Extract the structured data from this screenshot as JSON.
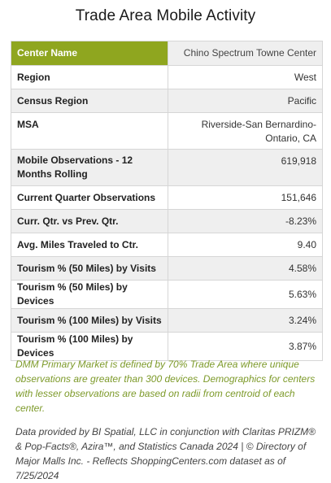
{
  "title": "Trade Area Mobile Activity",
  "accent_color": "#8fa61f",
  "note_color": "#7d9a2a",
  "rows": [
    {
      "label": "Center Name",
      "value": "Chino Spectrum Towne Center"
    },
    {
      "label": "Region",
      "value": "West"
    },
    {
      "label": "Census Region",
      "value": "Pacific"
    },
    {
      "label": "MSA",
      "value": "Riverside-San Bernardino-\nOntario, CA"
    },
    {
      "label": "Mobile Observations - 12 Months Rolling",
      "value": "619,918"
    },
    {
      "label": "Current Quarter Observations",
      "value": "151,646"
    },
    {
      "label": "Curr. Qtr. vs Prev. Qtr.",
      "value": "-8.23%"
    },
    {
      "label": "Avg. Miles Traveled to Ctr.",
      "value": "9.40"
    },
    {
      "label": "Tourism % (50 Miles) by Visits",
      "value": "4.58%"
    },
    {
      "label": "Tourism % (50 Miles) by Devices",
      "value": "5.63%"
    },
    {
      "label": "Tourism % (100 Miles) by Visits",
      "value": "3.24%"
    },
    {
      "label": "Tourism % (100 Miles) by Devices",
      "value": "3.87%"
    }
  ],
  "note": "DMM Primary Market is defined by 70% Trade Area where unique observations are greater than 300 devices. Demographics for centers with lesser observations are based on radii from centroid of each center.",
  "credit": "Data provided by BI Spatial, LLC in conjunction with Claritas PRIZM® & Pop-Facts®, Azira™, and Statistics Canada 2024 | © Directory of Major Malls Inc. - Reflects ShoppingCenters.com dataset as of 7/25/2024"
}
